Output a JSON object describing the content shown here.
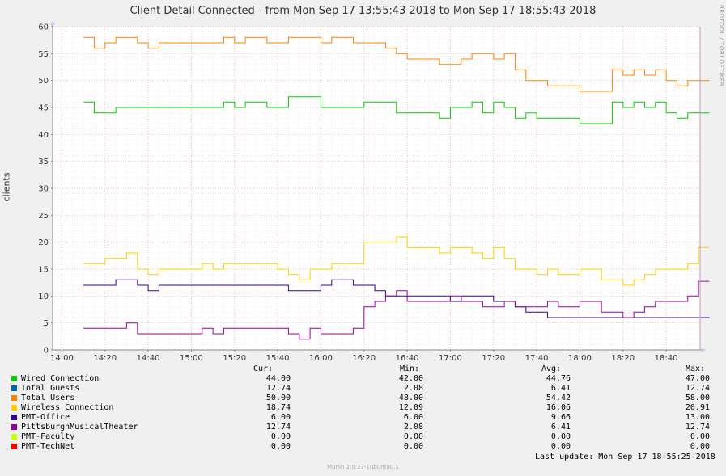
{
  "title": "Client Detail Connected - from Mon Sep 17 13:55:43 2018 to Mon Sep 17 18:55:43 2018",
  "side_label": "RRDTOOL / TOBI OETIKER",
  "version": "Munin 2.0.37-1ubuntu0.1",
  "last_update": "Last update: Mon Sep 17 18:55:25 2018",
  "legend_headers": {
    "cur": "Cur:",
    "min": "Min:",
    "avg": "Avg:",
    "max": "Max:"
  },
  "chart_data": {
    "type": "line",
    "title": "Client Detail Connected - from Mon Sep 17 13:55:43 2018 to Mon Sep 17 18:55:43 2018",
    "ylabel": "clients",
    "ylim": [
      0,
      60
    ],
    "yticks": [
      "0",
      "5",
      "10",
      "15",
      "20",
      "25",
      "30",
      "35",
      "40",
      "45",
      "50",
      "55",
      "60"
    ],
    "xlim": [
      "13:55:43",
      "18:55:43"
    ],
    "xticks": [
      "14:00",
      "14:20",
      "14:40",
      "15:00",
      "15:20",
      "15:40",
      "16:00",
      "16:20",
      "16:40",
      "17:00",
      "17:20",
      "17:40",
      "18:00",
      "18:20",
      "18:40"
    ],
    "grid": true,
    "x": [
      "14:10",
      "14:15",
      "14:20",
      "14:25",
      "14:30",
      "14:35",
      "14:40",
      "14:45",
      "14:50",
      "14:55",
      "15:00",
      "15:05",
      "15:10",
      "15:15",
      "15:20",
      "15:25",
      "15:30",
      "15:35",
      "15:40",
      "15:45",
      "15:50",
      "15:55",
      "16:00",
      "16:05",
      "16:10",
      "16:15",
      "16:20",
      "16:25",
      "16:30",
      "16:35",
      "16:40",
      "16:45",
      "16:50",
      "16:55",
      "17:00",
      "17:05",
      "17:10",
      "17:15",
      "17:20",
      "17:25",
      "17:30",
      "17:35",
      "17:40",
      "17:45",
      "17:50",
      "17:55",
      "18:00",
      "18:05",
      "18:10",
      "18:15",
      "18:20",
      "18:25",
      "18:30",
      "18:35",
      "18:40",
      "18:45",
      "18:50",
      "18:55"
    ],
    "series": [
      {
        "name": "Wired Connection",
        "color": "#00cc00",
        "cur": "44.00",
        "min": "42.00",
        "avg": "44.76",
        "max": "47.00",
        "values": [
          46,
          44,
          44,
          45,
          45,
          45,
          45,
          45,
          45,
          45,
          45,
          45,
          45,
          46,
          45,
          46,
          46,
          45,
          45,
          47,
          47,
          47,
          45,
          45,
          45,
          45,
          46,
          46,
          46,
          44,
          44,
          44,
          44,
          43,
          45,
          45,
          46,
          44,
          46,
          45,
          43,
          44,
          43,
          43,
          43,
          43,
          42,
          42,
          42,
          46,
          45,
          46,
          45,
          46,
          44,
          43,
          44,
          44
        ]
      },
      {
        "name": "Total Guests",
        "color": "#0066b3",
        "cur": "12.74",
        "min": "2.08",
        "avg": "6.41",
        "max": "12.74",
        "values": [
          null,
          null,
          null,
          null,
          null,
          null,
          null,
          null,
          null,
          null,
          null,
          null,
          null,
          null,
          null,
          null,
          null,
          null,
          null,
          null,
          null,
          null,
          null,
          null,
          null,
          null,
          null,
          null,
          null,
          null,
          null,
          null,
          null,
          null,
          null,
          null,
          null,
          null,
          null,
          null,
          null,
          null,
          null,
          null,
          null,
          null,
          null,
          null,
          null,
          null,
          null,
          null,
          null,
          null,
          null,
          null,
          null,
          null
        ]
      },
      {
        "name": "Total Users",
        "color": "#ff8000",
        "cur": "50.00",
        "min": "48.00",
        "avg": "54.42",
        "max": "58.00",
        "values": [
          58,
          56,
          57,
          58,
          58,
          57,
          56,
          57,
          57,
          57,
          57,
          57,
          57,
          58,
          57,
          58,
          58,
          57,
          57,
          58,
          58,
          58,
          57,
          58,
          58,
          57,
          57,
          57,
          56,
          55,
          54,
          54,
          54,
          53,
          53,
          54,
          55,
          55,
          54,
          55,
          52,
          50,
          50,
          49,
          49,
          49,
          48,
          48,
          48,
          52,
          51,
          52,
          51,
          52,
          50,
          49,
          50,
          50
        ]
      },
      {
        "name": "Wireless Connection",
        "color": "#ffcc00",
        "cur": "18.74",
        "min": "12.09",
        "avg": "16.06",
        "max": "20.91",
        "values": [
          16,
          16,
          17,
          17,
          18,
          15,
          14,
          15,
          15,
          15,
          15,
          16,
          15,
          16,
          16,
          16,
          16,
          16,
          15,
          14,
          13,
          15,
          15,
          16,
          16,
          16,
          20,
          20,
          20,
          21,
          19,
          19,
          19,
          18,
          19,
          19,
          18,
          17,
          19,
          17,
          15,
          15,
          14,
          15,
          14,
          14,
          15,
          15,
          13,
          13,
          12,
          13,
          14,
          15,
          15,
          15,
          16,
          19
        ]
      },
      {
        "name": "PMT-Office",
        "color": "#330099",
        "cur": "6.00",
        "min": "6.00",
        "avg": "9.66",
        "max": "13.00",
        "values": [
          12,
          12,
          12,
          13,
          13,
          12,
          11,
          12,
          12,
          12,
          12,
          12,
          12,
          12,
          12,
          12,
          12,
          12,
          12,
          11,
          11,
          11,
          12,
          13,
          13,
          12,
          12,
          11,
          10,
          10,
          10,
          10,
          10,
          10,
          9,
          10,
          10,
          10,
          9,
          9,
          8,
          7,
          7,
          6,
          6,
          6,
          6,
          6,
          6,
          6,
          6,
          6,
          6,
          6,
          6,
          6,
          6,
          6
        ]
      },
      {
        "name": "PittsburghMusicalTheater",
        "color": "#990099",
        "cur": "12.74",
        "min": "2.08",
        "avg": "6.41",
        "max": "12.74",
        "values": [
          4,
          4,
          4,
          4,
          5,
          3,
          3,
          3,
          3,
          3,
          3,
          4,
          3,
          4,
          4,
          4,
          4,
          4,
          4,
          3,
          2,
          4,
          3,
          3,
          3,
          4,
          8,
          9,
          10,
          11,
          9,
          9,
          9,
          9,
          10,
          9,
          9,
          8,
          8,
          9,
          8,
          8,
          8,
          9,
          8,
          8,
          9,
          9,
          7,
          7,
          6,
          7,
          8,
          9,
          9,
          9,
          10,
          12.74
        ]
      },
      {
        "name": "PMT-Faculty",
        "color": "#ccff00",
        "cur": "0.00",
        "min": "0.00",
        "avg": "0.00",
        "max": "0.00",
        "values": [
          null,
          null,
          null,
          null,
          null,
          null,
          null,
          null,
          null,
          null,
          null,
          null,
          null,
          null,
          null,
          null,
          null,
          null,
          null,
          null,
          null,
          null,
          null,
          null,
          null,
          null,
          null,
          null,
          null,
          null,
          null,
          null,
          null,
          null,
          null,
          null,
          null,
          null,
          null,
          null,
          null,
          null,
          null,
          null,
          null,
          null,
          null,
          null,
          null,
          null,
          null,
          null,
          null,
          null,
          null,
          null,
          null,
          null
        ]
      },
      {
        "name": "PMT-TechNet",
        "color": "#ff0000",
        "cur": "0.00",
        "min": "0.00",
        "avg": "0.00",
        "max": "0.00",
        "values": [
          null,
          null,
          null,
          null,
          null,
          null,
          null,
          null,
          null,
          null,
          null,
          null,
          null,
          null,
          null,
          null,
          null,
          null,
          null,
          null,
          null,
          null,
          null,
          null,
          null,
          null,
          null,
          null,
          null,
          null,
          null,
          null,
          null,
          null,
          null,
          null,
          null,
          null,
          null,
          null,
          null,
          null,
          null,
          null,
          null,
          null,
          null,
          null,
          null,
          null,
          null,
          null,
          null,
          null,
          null,
          null,
          null,
          null
        ]
      }
    ]
  }
}
